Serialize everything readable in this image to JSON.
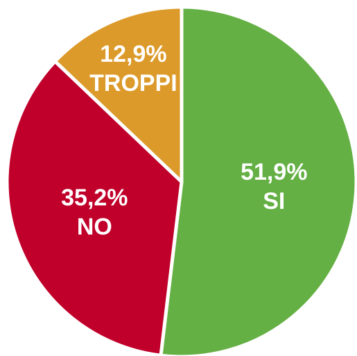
{
  "chart_data": {
    "type": "pie",
    "categories": [
      "SI",
      "NO",
      "TROPPI"
    ],
    "values": [
      51.9,
      35.2,
      12.9
    ],
    "value_labels": [
      "51,9%",
      "35,2%",
      "12,9%"
    ],
    "colors": [
      "#64b044",
      "#c0002a",
      "#dc9a2a"
    ]
  }
}
